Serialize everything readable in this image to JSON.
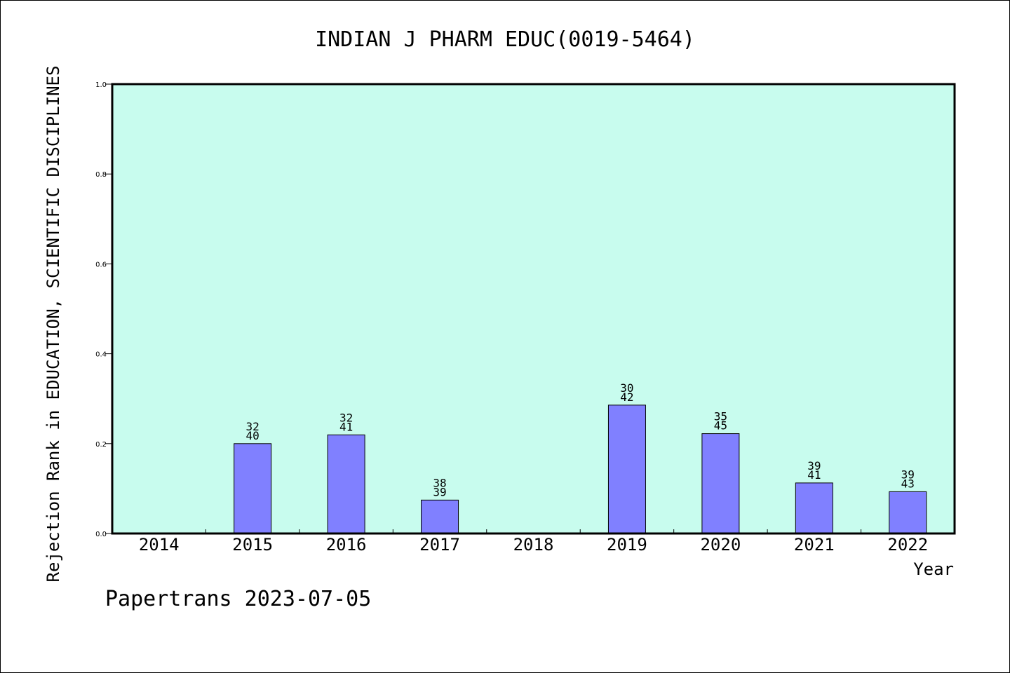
{
  "chart_data": {
    "type": "bar",
    "title": "INDIAN J PHARM EDUC(0019-5464)",
    "xlabel": "Year",
    "ylabel": "Rejection Rank in EDUCATION, SCIENTIFIC DISCIPLINES",
    "ylim": [
      0,
      1.0
    ],
    "yticks": [
      "0.0",
      "0.2",
      "0.4",
      "0.6",
      "0.8",
      "1.0"
    ],
    "categories": [
      "2014",
      "2015",
      "2016",
      "2017",
      "2018",
      "2019",
      "2020",
      "2021",
      "2022"
    ],
    "values": [
      null,
      0.2,
      0.2195,
      0.0744,
      null,
      0.2857,
      0.2222,
      0.1125,
      0.093
    ],
    "labels_top": [
      "",
      "32",
      "32",
      "38",
      "",
      "30",
      "35",
      "39",
      "39"
    ],
    "labels_bottom": [
      "",
      "40",
      "41",
      "39",
      "",
      "42",
      "45",
      "41",
      "43"
    ],
    "colors": {
      "plot_bg": "#c8fcee",
      "bar": "#8080ff",
      "bar_edge": "#000000"
    },
    "grid": false
  },
  "footer": "Papertrans 2023-07-05"
}
